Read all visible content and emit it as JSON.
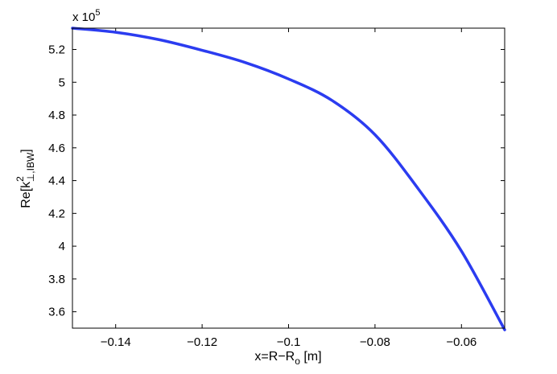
{
  "chart_data": {
    "type": "line",
    "xlabel": {
      "main": "x=R−R",
      "sub": "o",
      "tail": " [m]"
    },
    "ylabel": {
      "pre": "Re[k",
      "sup": "2",
      "sub": "⊥,IBW",
      "post": "]"
    },
    "multiplier": {
      "base": "x 10",
      "exponent": "5"
    },
    "xlim": [
      -0.15,
      -0.05
    ],
    "ylim": [
      3.5,
      5.33
    ],
    "x_ticks": [
      -0.14,
      -0.12,
      -0.1,
      -0.08,
      -0.06
    ],
    "x_tick_labels": [
      "−0.14",
      "−0.12",
      "−0.1",
      "−0.08",
      "−0.06"
    ],
    "y_ticks": [
      3.6,
      3.8,
      4.0,
      4.2,
      4.4,
      4.6,
      4.8,
      5.0,
      5.2
    ],
    "y_tick_labels": [
      "3.6",
      "3.8",
      "4",
      "4.2",
      "4.4",
      "4.6",
      "4.8",
      "5",
      "5.2"
    ],
    "grid": false,
    "series": [
      {
        "color": "#2b3cf0",
        "x": [
          -0.15,
          -0.14,
          -0.13,
          -0.12,
          -0.11,
          -0.1,
          -0.09,
          -0.08,
          -0.07,
          -0.06,
          -0.05
        ],
        "y": [
          5.33,
          5.305,
          5.26,
          5.195,
          5.12,
          5.02,
          4.89,
          4.68,
          4.35,
          3.97,
          3.49
        ]
      }
    ]
  }
}
